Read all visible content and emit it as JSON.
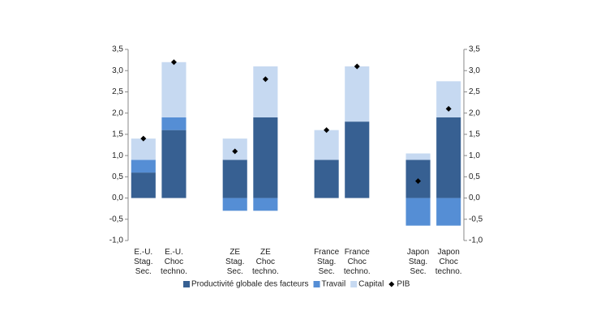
{
  "chart_data": {
    "type": "bar",
    "stacked": true,
    "categories": [
      "E.-U. Stag. Sec.",
      "E.-U. Choc techno.",
      null,
      "ZE Stag. Sec.",
      "ZE Choc techno.",
      null,
      "France Stag. Sec.",
      "France Choc techno.",
      null,
      "Japon Stag. Sec.",
      "Japon Choc techno."
    ],
    "series": [
      {
        "name": "Productivité globale des facteurs",
        "color": "#376092",
        "values": [
          0.6,
          1.6,
          null,
          0.9,
          1.9,
          null,
          0.9,
          1.8,
          null,
          0.9,
          1.9
        ]
      },
      {
        "name": "Travail",
        "color": "#558ed5",
        "values": [
          0.3,
          0.3,
          null,
          -0.3,
          -0.3,
          null,
          0,
          0,
          null,
          -0.65,
          -0.65
        ]
      },
      {
        "name": "Capital",
        "color": "#c6d9f1",
        "values": [
          0.5,
          1.3,
          null,
          0.5,
          1.2,
          null,
          0.7,
          1.3,
          null,
          0.15,
          0.85
        ]
      },
      {
        "name": "PIB",
        "color": "#000000",
        "marker": "diamond",
        "values": [
          1.4,
          3.2,
          null,
          1.1,
          2.8,
          null,
          1.6,
          3.1,
          null,
          0.4,
          2.1
        ]
      }
    ],
    "ylim": [
      -1.0,
      3.5
    ],
    "yticks": [
      {
        "value": -1.0,
        "label": "-1,0"
      },
      {
        "value": -0.5,
        "label": "-0,5"
      },
      {
        "value": 0.0,
        "label": "0,0"
      },
      {
        "value": 0.5,
        "label": "0,5"
      },
      {
        "value": 1.0,
        "label": "1,0"
      },
      {
        "value": 1.5,
        "label": "1,5"
      },
      {
        "value": 2.0,
        "label": "2,0"
      },
      {
        "value": 2.5,
        "label": "2,5"
      },
      {
        "value": 3.0,
        "label": "3,0"
      },
      {
        "value": 3.5,
        "label": "3,5"
      }
    ],
    "y2lim": [
      -1.0,
      3.5
    ],
    "y2ticks": [
      {
        "value": -1.0,
        "label": "-1,0"
      },
      {
        "value": -0.5,
        "label": "-0,5"
      },
      {
        "value": 0.0,
        "label": "0,0"
      },
      {
        "value": 0.5,
        "label": "0,5"
      },
      {
        "value": 1.0,
        "label": "1,0"
      },
      {
        "value": 1.5,
        "label": "1,5"
      },
      {
        "value": 2.0,
        "label": "2,0"
      },
      {
        "value": 2.5,
        "label": "2,5"
      },
      {
        "value": 3.0,
        "label": "3,0"
      },
      {
        "value": 3.5,
        "label": "3,5"
      }
    ],
    "legend": "bottom"
  }
}
